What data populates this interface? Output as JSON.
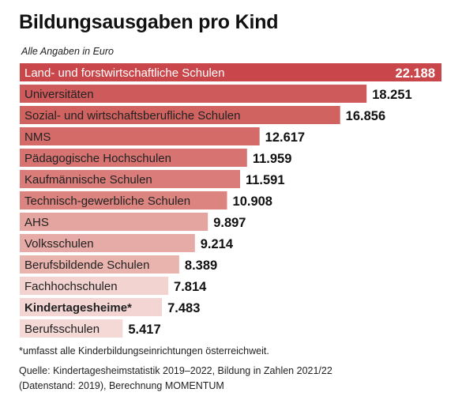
{
  "title": "Bildungsausgaben pro Kind",
  "subtitle": "Alle Angaben in Euro",
  "footnote": "*umfasst alle Kinderbildungseinrichtungen österreichweit.",
  "source_line1": "Quelle: Kindertagesheimstatistik 2019–2022, Bildung in Zahlen 2021/22",
  "source_line2": "(Datenstand: 2019), Berechnung MOMENTUM",
  "chart_data": {
    "type": "bar",
    "orientation": "horizontal",
    "unit": "Euro",
    "categories": [
      "Land- und forstwirtschaftliche Schulen",
      "Universitäten",
      "Sozial- und wirtschaftsberufliche Schulen",
      "NMS",
      "Pädagogische Hochschulen",
      "Kaufmännische Schulen",
      "Technisch-gewerbliche Schulen",
      "AHS",
      "Volksschulen",
      "Berufsbildende Schulen",
      "Fachhochschulen",
      "Kindertagesheime*",
      "Berufsschulen"
    ],
    "values": [
      22188,
      18251,
      16856,
      12617,
      11959,
      11591,
      10908,
      9897,
      9214,
      8389,
      7814,
      7483,
      5417
    ],
    "value_labels": [
      "22.188",
      "18.251",
      "16.856",
      "12.617",
      "11.959",
      "11.591",
      "10.908",
      "9.897",
      "9.214",
      "8.389",
      "7.814",
      "7.483",
      "5.417"
    ],
    "bold_categories": [
      "Kindertagesheime*"
    ],
    "colors": [
      "#c9474b",
      "#cf5a5b",
      "#d0625f",
      "#d46b69",
      "#d77472",
      "#da7c79",
      "#dc8580",
      "#e4a49f",
      "#e6aba6",
      "#e9b4ae",
      "#f2d3d0",
      "#f3d6d3",
      "#f4d9d6"
    ]
  }
}
